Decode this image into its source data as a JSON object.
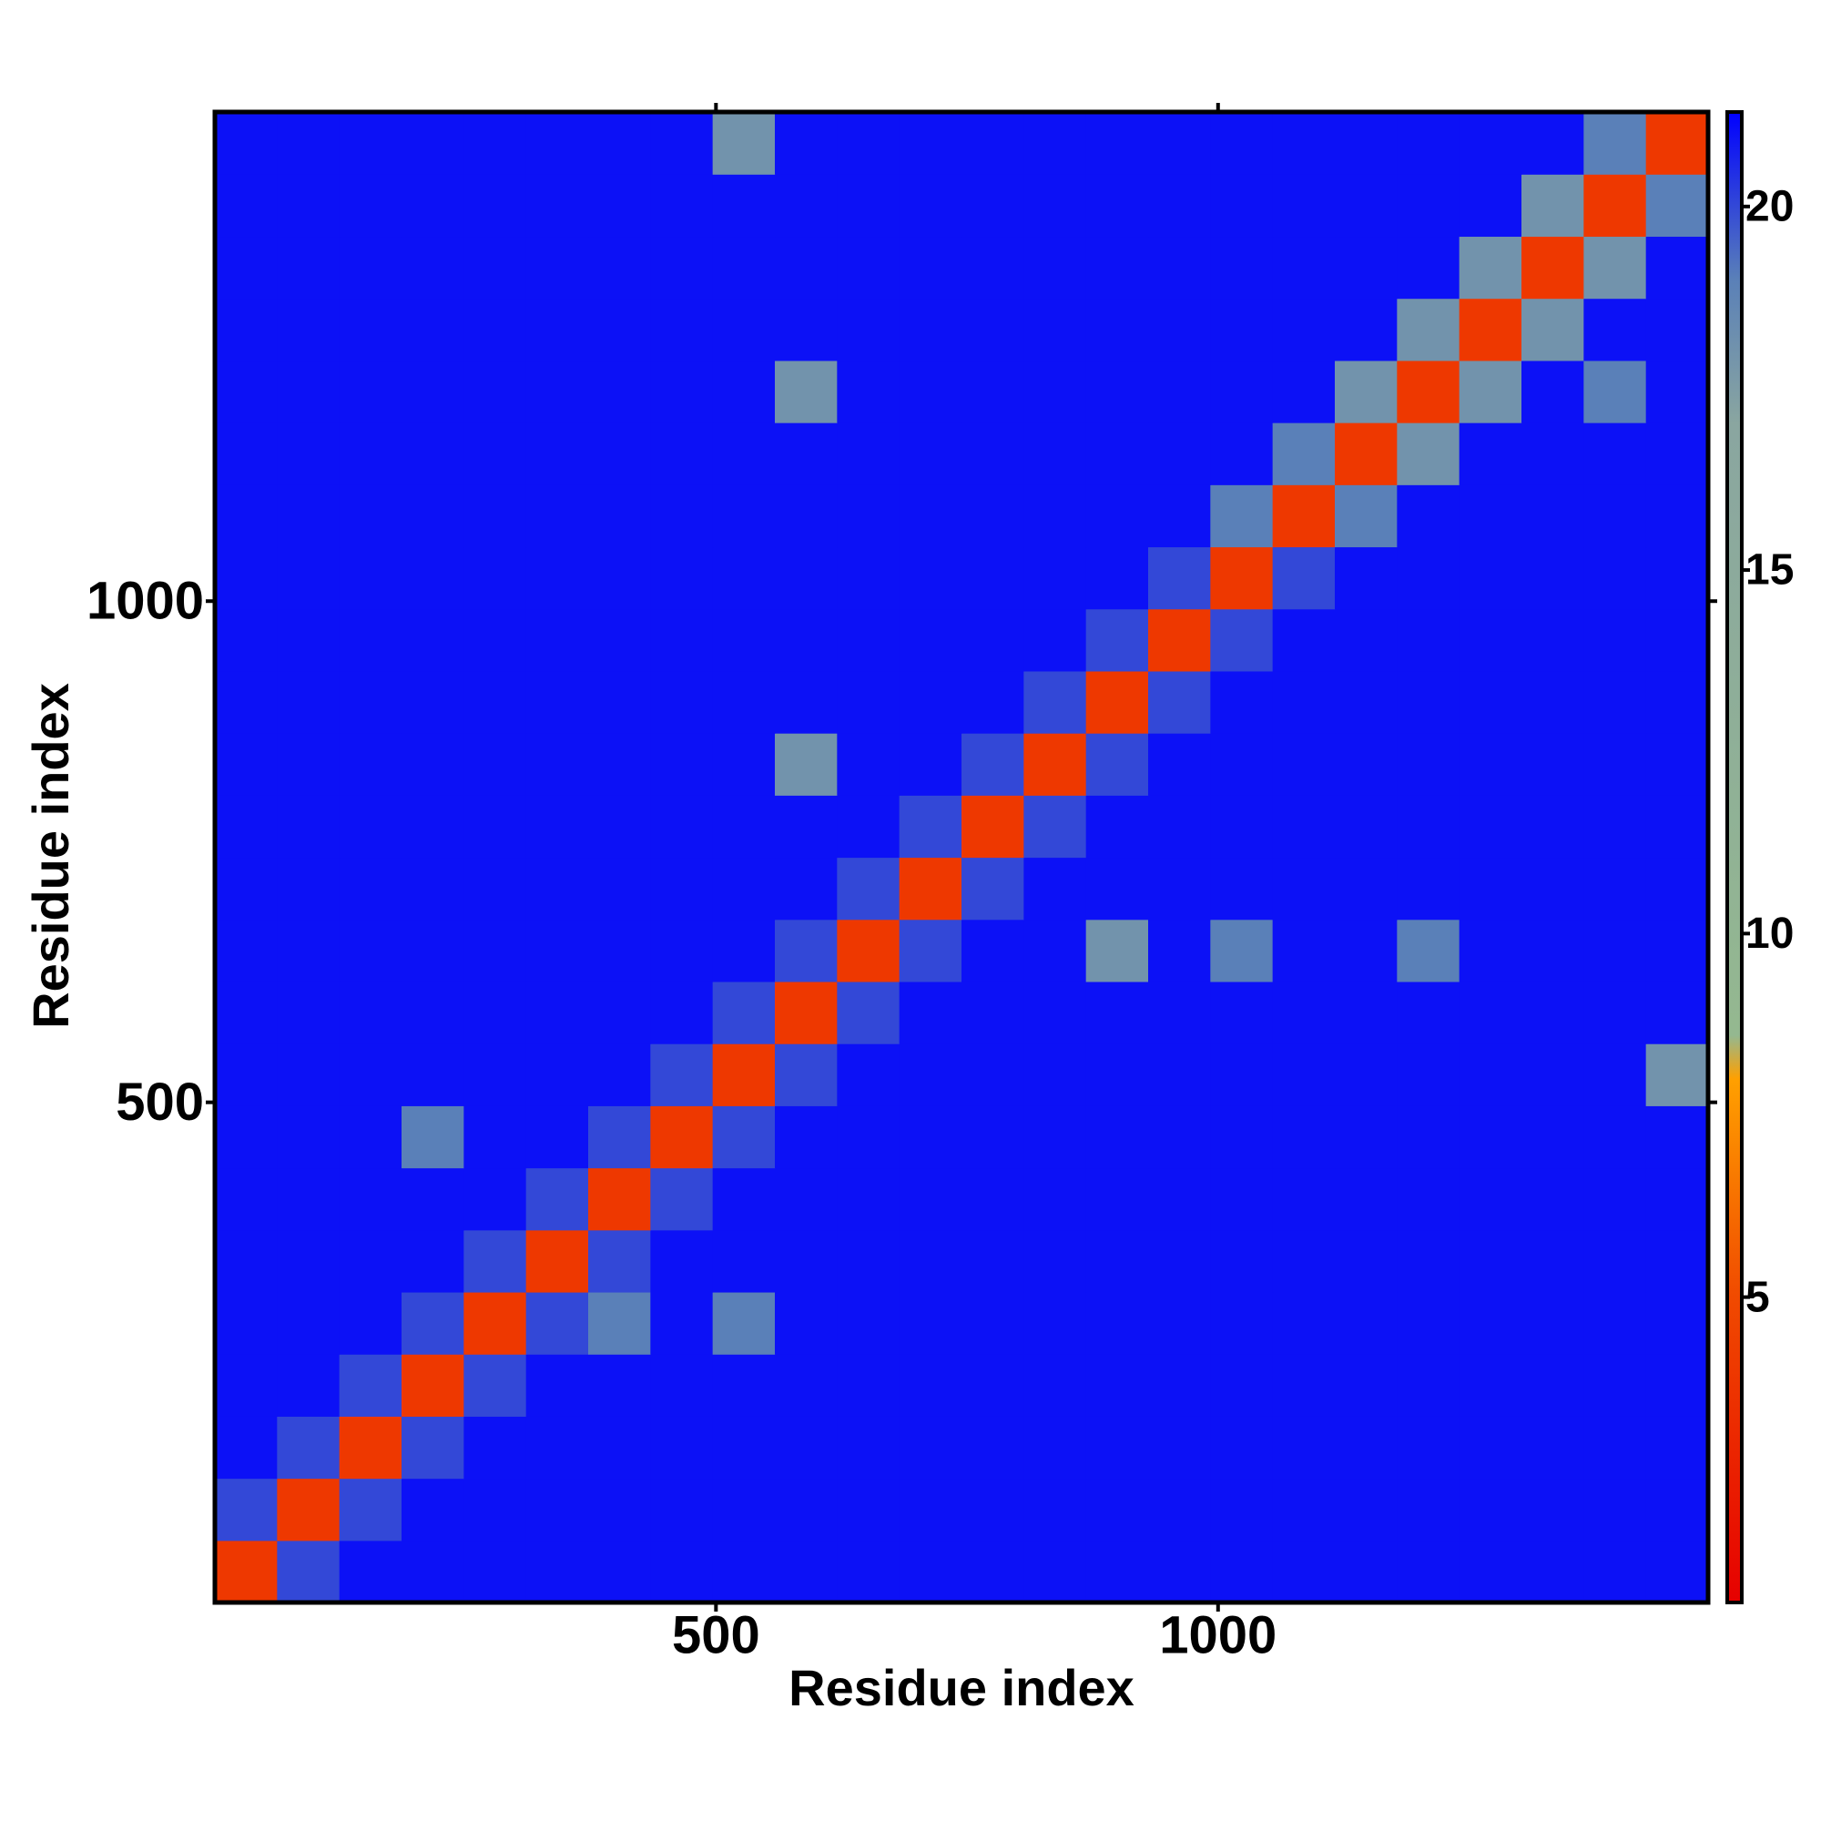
{
  "chart_data": {
    "type": "heatmap",
    "x_label": "Residue index",
    "y_label": "Residue index",
    "xlim": [
      1,
      1488
    ],
    "ylim": [
      1,
      1488
    ],
    "xticks": [
      500,
      1000
    ],
    "yticks": [
      500,
      1000
    ],
    "clim": [
      0.8,
      21.3
    ],
    "cticks": [
      5,
      10,
      15,
      20
    ],
    "colorscale": [
      {
        "value": 0.8,
        "color": "#e60000"
      },
      {
        "value": 5,
        "color": "#f04a00"
      },
      {
        "value": 8,
        "color": "#ffa000"
      },
      {
        "value": 8.6,
        "color": "#94b890"
      },
      {
        "value": 17,
        "color": "#8aa6a0"
      },
      {
        "value": 19,
        "color": "#5a80b8"
      },
      {
        "value": 21.3,
        "color": "#0000ff"
      }
    ],
    "z": [
      [
        4,
        20,
        21,
        21,
        21,
        21,
        21,
        21,
        21,
        21,
        21,
        21,
        21,
        21,
        21,
        21,
        21,
        21,
        21,
        21,
        21,
        21,
        21,
        21
      ],
      [
        20,
        4,
        20,
        21,
        21,
        21,
        21,
        21,
        21,
        21,
        21,
        21,
        21,
        21,
        21,
        21,
        21,
        21,
        21,
        21,
        21,
        21,
        21,
        21
      ],
      [
        21,
        20,
        4,
        20,
        21,
        21,
        21,
        21,
        21,
        21,
        21,
        21,
        21,
        21,
        21,
        21,
        21,
        21,
        21,
        21,
        21,
        21,
        21,
        21
      ],
      [
        21,
        21,
        20,
        4,
        20,
        21,
        21,
        21,
        21,
        21,
        21,
        21,
        21,
        21,
        21,
        21,
        21,
        21,
        21,
        21,
        21,
        21,
        21,
        21
      ],
      [
        21,
        21,
        21,
        20,
        4,
        20,
        19,
        21,
        19,
        21,
        21,
        21,
        21,
        21,
        21,
        21,
        21,
        21,
        21,
        21,
        21,
        21,
        21,
        21
      ],
      [
        21,
        21,
        21,
        21,
        20,
        4,
        20,
        21,
        21,
        21,
        21,
        21,
        21,
        21,
        21,
        21,
        21,
        21,
        21,
        21,
        21,
        21,
        21,
        21
      ],
      [
        21,
        21,
        21,
        21,
        21,
        20,
        4,
        20,
        21,
        21,
        21,
        21,
        21,
        21,
        21,
        21,
        21,
        21,
        21,
        21,
        21,
        21,
        21,
        21
      ],
      [
        21,
        21,
        21,
        19,
        21,
        21,
        20,
        4,
        20,
        21,
        21,
        21,
        21,
        21,
        21,
        21,
        21,
        21,
        21,
        21,
        21,
        21,
        21,
        21
      ],
      [
        21,
        21,
        21,
        21,
        21,
        21,
        21,
        20,
        4,
        20,
        21,
        21,
        21,
        21,
        21,
        21,
        21,
        21,
        21,
        21,
        21,
        21,
        21,
        18
      ],
      [
        21,
        21,
        21,
        21,
        21,
        21,
        21,
        21,
        20,
        4,
        20,
        21,
        21,
        21,
        21,
        21,
        21,
        21,
        21,
        21,
        21,
        21,
        21,
        21
      ],
      [
        21,
        21,
        21,
        21,
        21,
        21,
        21,
        21,
        21,
        20,
        4,
        20,
        21,
        21,
        18,
        21,
        19,
        21,
        21,
        19,
        21,
        21,
        21,
        21
      ],
      [
        21,
        21,
        21,
        21,
        21,
        21,
        21,
        21,
        21,
        21,
        20,
        4,
        20,
        21,
        21,
        21,
        21,
        21,
        21,
        21,
        21,
        21,
        21,
        21
      ],
      [
        21,
        21,
        21,
        21,
        21,
        21,
        21,
        21,
        21,
        21,
        21,
        20,
        4,
        20,
        21,
        21,
        21,
        21,
        21,
        21,
        21,
        21,
        21,
        21
      ],
      [
        21,
        21,
        21,
        21,
        21,
        21,
        21,
        21,
        21,
        18,
        21,
        21,
        20,
        4,
        20,
        21,
        21,
        21,
        21,
        21,
        21,
        21,
        21,
        21
      ],
      [
        21,
        21,
        21,
        21,
        21,
        21,
        21,
        21,
        21,
        21,
        21,
        21,
        21,
        20,
        4,
        20,
        21,
        21,
        21,
        21,
        21,
        21,
        21,
        21
      ],
      [
        21,
        21,
        21,
        21,
        21,
        21,
        21,
        21,
        21,
        21,
        21,
        21,
        21,
        21,
        20,
        4,
        20,
        21,
        21,
        21,
        21,
        21,
        21,
        21
      ],
      [
        21,
        21,
        21,
        21,
        21,
        21,
        21,
        21,
        21,
        21,
        21,
        21,
        21,
        21,
        21,
        20,
        4,
        20,
        21,
        21,
        21,
        21,
        21,
        21
      ],
      [
        21,
        21,
        21,
        21,
        21,
        21,
        21,
        21,
        21,
        21,
        21,
        21,
        21,
        21,
        21,
        21,
        19,
        4,
        19,
        21,
        21,
        21,
        21,
        21
      ],
      [
        21,
        21,
        21,
        21,
        21,
        21,
        21,
        21,
        21,
        21,
        21,
        21,
        21,
        21,
        21,
        21,
        21,
        19,
        4,
        18,
        21,
        21,
        21,
        21
      ],
      [
        21,
        21,
        21,
        21,
        21,
        21,
        21,
        21,
        21,
        18,
        21,
        21,
        21,
        21,
        21,
        21,
        21,
        21,
        18,
        4,
        18,
        21,
        19,
        21
      ],
      [
        21,
        21,
        21,
        21,
        21,
        21,
        21,
        21,
        21,
        21,
        21,
        21,
        21,
        21,
        21,
        21,
        21,
        21,
        21,
        18,
        4,
        18,
        21,
        21
      ],
      [
        21,
        21,
        21,
        21,
        21,
        21,
        21,
        21,
        21,
        21,
        21,
        21,
        21,
        21,
        21,
        21,
        21,
        21,
        21,
        21,
        18,
        4,
        18,
        21
      ],
      [
        21,
        21,
        21,
        21,
        21,
        21,
        21,
        21,
        21,
        21,
        21,
        21,
        21,
        21,
        21,
        21,
        21,
        21,
        21,
        21,
        21,
        18,
        4,
        19
      ],
      [
        21,
        21,
        21,
        21,
        21,
        21,
        21,
        21,
        18,
        21,
        21,
        21,
        21,
        21,
        21,
        21,
        21,
        21,
        21,
        21,
        21,
        21,
        19,
        4
      ]
    ]
  }
}
